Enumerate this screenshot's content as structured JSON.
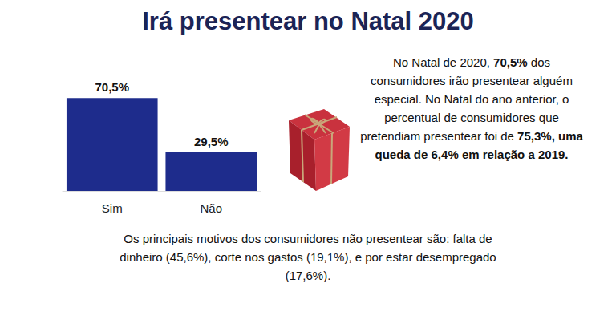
{
  "chart_data": {
    "type": "bar",
    "title": "Irá presentear no Natal 2020",
    "categories": [
      "Sim",
      "Não"
    ],
    "values": [
      70.5,
      29.5
    ],
    "value_labels": [
      "70,5%",
      "29,5%"
    ],
    "color": "#1e2c8c",
    "ylim": [
      0,
      78
    ],
    "grid": false,
    "data_labels": true,
    "tick_labels": "x",
    "annotations": [
      [
        {
          "text": "No Natal de 2020, ",
          "bold": false
        },
        {
          "text": "70,5%",
          "bold": true
        },
        {
          "text": " dos consumidores irão presentear alguém especial. No Natal do ano anterior, o percentual de consumidores que pretendiam presentear foi de ",
          "bold": false
        },
        {
          "text": "75,3%, uma queda de 6,4% em relação a 2019.",
          "bold": true
        }
      ],
      [
        {
          "text": "Os principais motivos dos consumidores não presentear são: falta de dinheiro (45,6%), corte nos gastos (19,1%), e por estar desempregado (17,6%).",
          "bold": false
        }
      ]
    ]
  }
}
